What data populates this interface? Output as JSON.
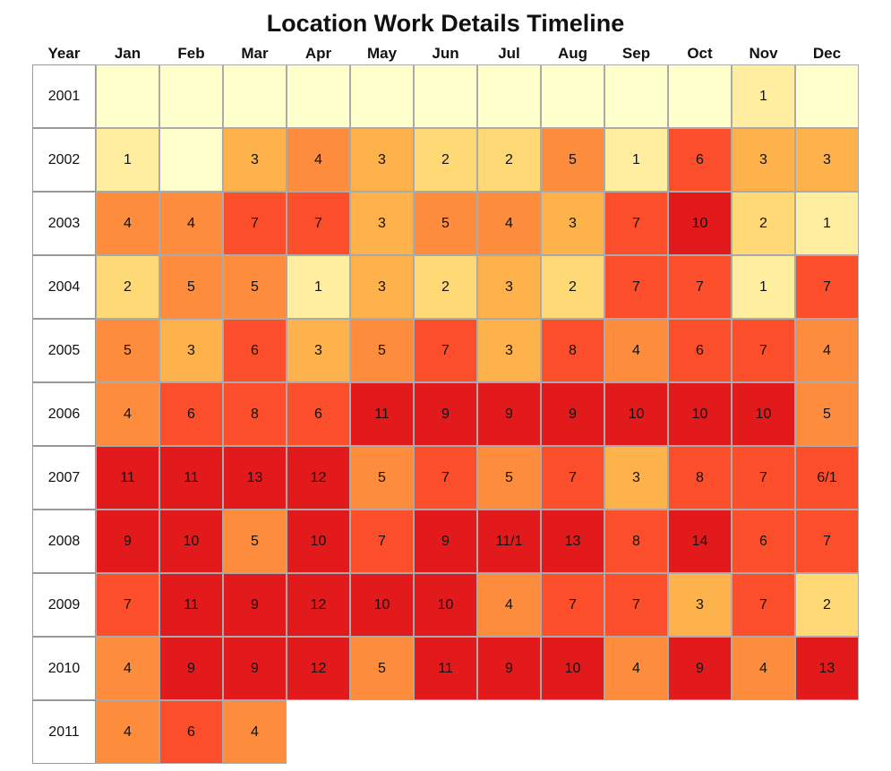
{
  "chart_data": {
    "type": "heatmap",
    "title": "Location Work Details Timeline",
    "row_header": "Year",
    "columns": [
      "Jan",
      "Feb",
      "Mar",
      "Apr",
      "May",
      "Jun",
      "Jul",
      "Aug",
      "Sep",
      "Oct",
      "Nov",
      "Dec"
    ],
    "rows": [
      {
        "year": "2001",
        "values": [
          "",
          "",
          "",
          "",
          "",
          "",
          "",
          "",
          "",
          "",
          "1",
          ""
        ]
      },
      {
        "year": "2002",
        "values": [
          "1",
          "",
          "3",
          "4",
          "3",
          "2",
          "2",
          "5",
          "1",
          "6",
          "3",
          "3"
        ]
      },
      {
        "year": "2003",
        "values": [
          "4",
          "4",
          "7",
          "7",
          "3",
          "5",
          "4",
          "3",
          "7",
          "10",
          "2",
          "1"
        ]
      },
      {
        "year": "2004",
        "values": [
          "2",
          "5",
          "5",
          "1",
          "3",
          "2",
          "3",
          "2",
          "7",
          "7",
          "1",
          "7"
        ]
      },
      {
        "year": "2005",
        "values": [
          "5",
          "3",
          "6",
          "3",
          "5",
          "7",
          "3",
          "8",
          "4",
          "6",
          "7",
          "4"
        ]
      },
      {
        "year": "2006",
        "values": [
          "4",
          "6",
          "8",
          "6",
          "11",
          "9",
          "9",
          "9",
          "10",
          "10",
          "10",
          "5"
        ]
      },
      {
        "year": "2007",
        "values": [
          "11",
          "11",
          "13",
          "12",
          "5",
          "7",
          "5",
          "7",
          "3",
          "8",
          "7",
          "6/1"
        ]
      },
      {
        "year": "2008",
        "values": [
          "9",
          "10",
          "5",
          "10",
          "7",
          "9",
          "11/1",
          "13",
          "8",
          "14",
          "6",
          "7"
        ]
      },
      {
        "year": "2009",
        "values": [
          "7",
          "11",
          "9",
          "12",
          "10",
          "10",
          "4",
          "7",
          "7",
          "3",
          "7",
          "2"
        ]
      },
      {
        "year": "2010",
        "values": [
          "4",
          "9",
          "9",
          "12",
          "5",
          "11",
          "9",
          "10",
          "4",
          "9",
          "4",
          "13"
        ]
      },
      {
        "year": "2011",
        "values": [
          "4",
          "6",
          "4"
        ]
      }
    ],
    "color_scale": {
      "empty": "#ffffcc",
      "1": "#ffeda0",
      "2": "#fed976",
      "3": "#feb24c",
      "4_5": "#fd8d3c",
      "6_8": "#fc4e2a",
      "9_plus": "#e31a1c"
    }
  }
}
